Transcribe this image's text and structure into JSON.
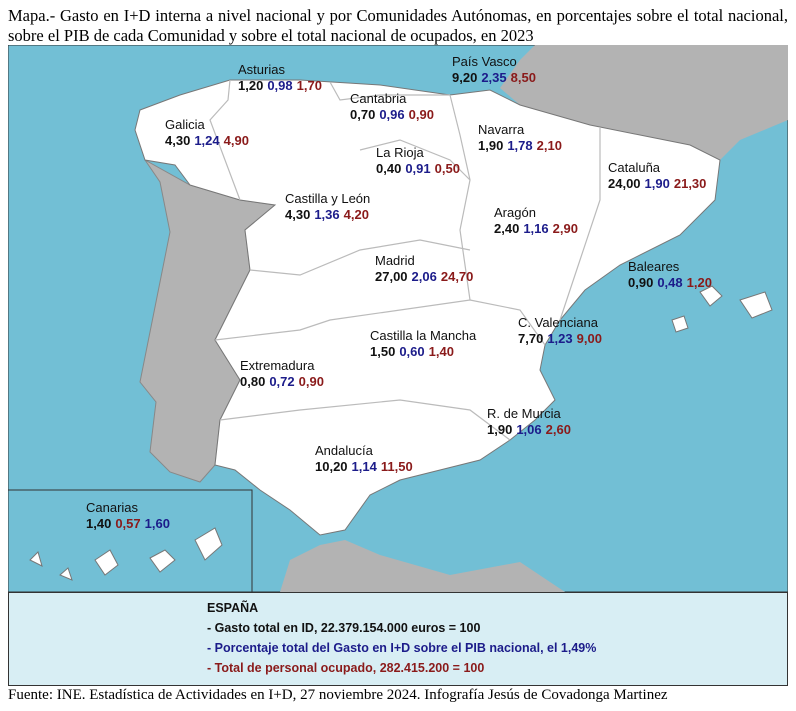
{
  "title": "Mapa.- Gasto en I+D interna a nivel nacional y por Comunidades Autónomas, en porcentajes sobre el total nacional, sobre el PIB de cada Comunidad y sobre el total nacional de ocupados, en 2023",
  "value_colors": [
    "#111111",
    "#1c1c8a",
    "#8a1a1a"
  ],
  "regions": [
    {
      "name": "Asturias",
      "values": [
        "1,20",
        "0,98",
        "1,70"
      ]
    },
    {
      "name": "País Vasco",
      "values": [
        "9,20",
        "2,35",
        "8,50"
      ]
    },
    {
      "name": "Cantabria",
      "values": [
        "0,70",
        "0,96",
        "0,90"
      ]
    },
    {
      "name": "Galicia",
      "values": [
        "4,30",
        "1,24",
        "4,90"
      ]
    },
    {
      "name": "Navarra",
      "values": [
        "1,90",
        "1,78",
        "2,10"
      ]
    },
    {
      "name": "La Rioja",
      "values": [
        "0,40",
        "0,91",
        "0,50"
      ]
    },
    {
      "name": "Cataluña",
      "values": [
        "24,00",
        "1,90",
        "21,30"
      ]
    },
    {
      "name": "Castilla y León",
      "values": [
        "4,30",
        "1,36",
        "4,20"
      ]
    },
    {
      "name": "Aragón",
      "values": [
        "2,40",
        "1,16",
        "2,90"
      ]
    },
    {
      "name": "Madrid",
      "values": [
        "27,00",
        "2,06",
        "24,70"
      ]
    },
    {
      "name": "Baleares",
      "values": [
        "0,90",
        "0,48",
        "1,20"
      ]
    },
    {
      "name": "C. Valenciana",
      "values": [
        "7,70",
        "1,23",
        "9,00"
      ]
    },
    {
      "name": "Castilla la Mancha",
      "values": [
        "1,50",
        "0,60",
        "1,40"
      ]
    },
    {
      "name": "Extremadura",
      "values": [
        "0,80",
        "0,72",
        "0,90"
      ]
    },
    {
      "name": "R. de Murcia",
      "values": [
        "1,90",
        "1,06",
        "2,60"
      ]
    },
    {
      "name": "Andalucía",
      "values": [
        "10,20",
        "1,14",
        "11,50"
      ]
    },
    {
      "name": "Canarias",
      "values": [
        "1,40",
        "0,57",
        "1,60"
      ],
      "value_colors": [
        "#111111",
        "#8a1a1a",
        "#1c1c8a"
      ]
    }
  ],
  "summary": {
    "heading": "ESPAÑA",
    "lines": [
      "- Gasto total en ID, 22.379.154.000 euros = 100",
      "- Porcentaje total del Gasto en I+D sobre el PIB nacional, el 1,49%",
      "- Total de personal ocupado, 282.415.200 = 100"
    ]
  },
  "source": "Fuente: INE. Estadística de Actividades en I+D, 27 noviembre 2024. Infografía Jesús de Covadonga Martinez"
}
